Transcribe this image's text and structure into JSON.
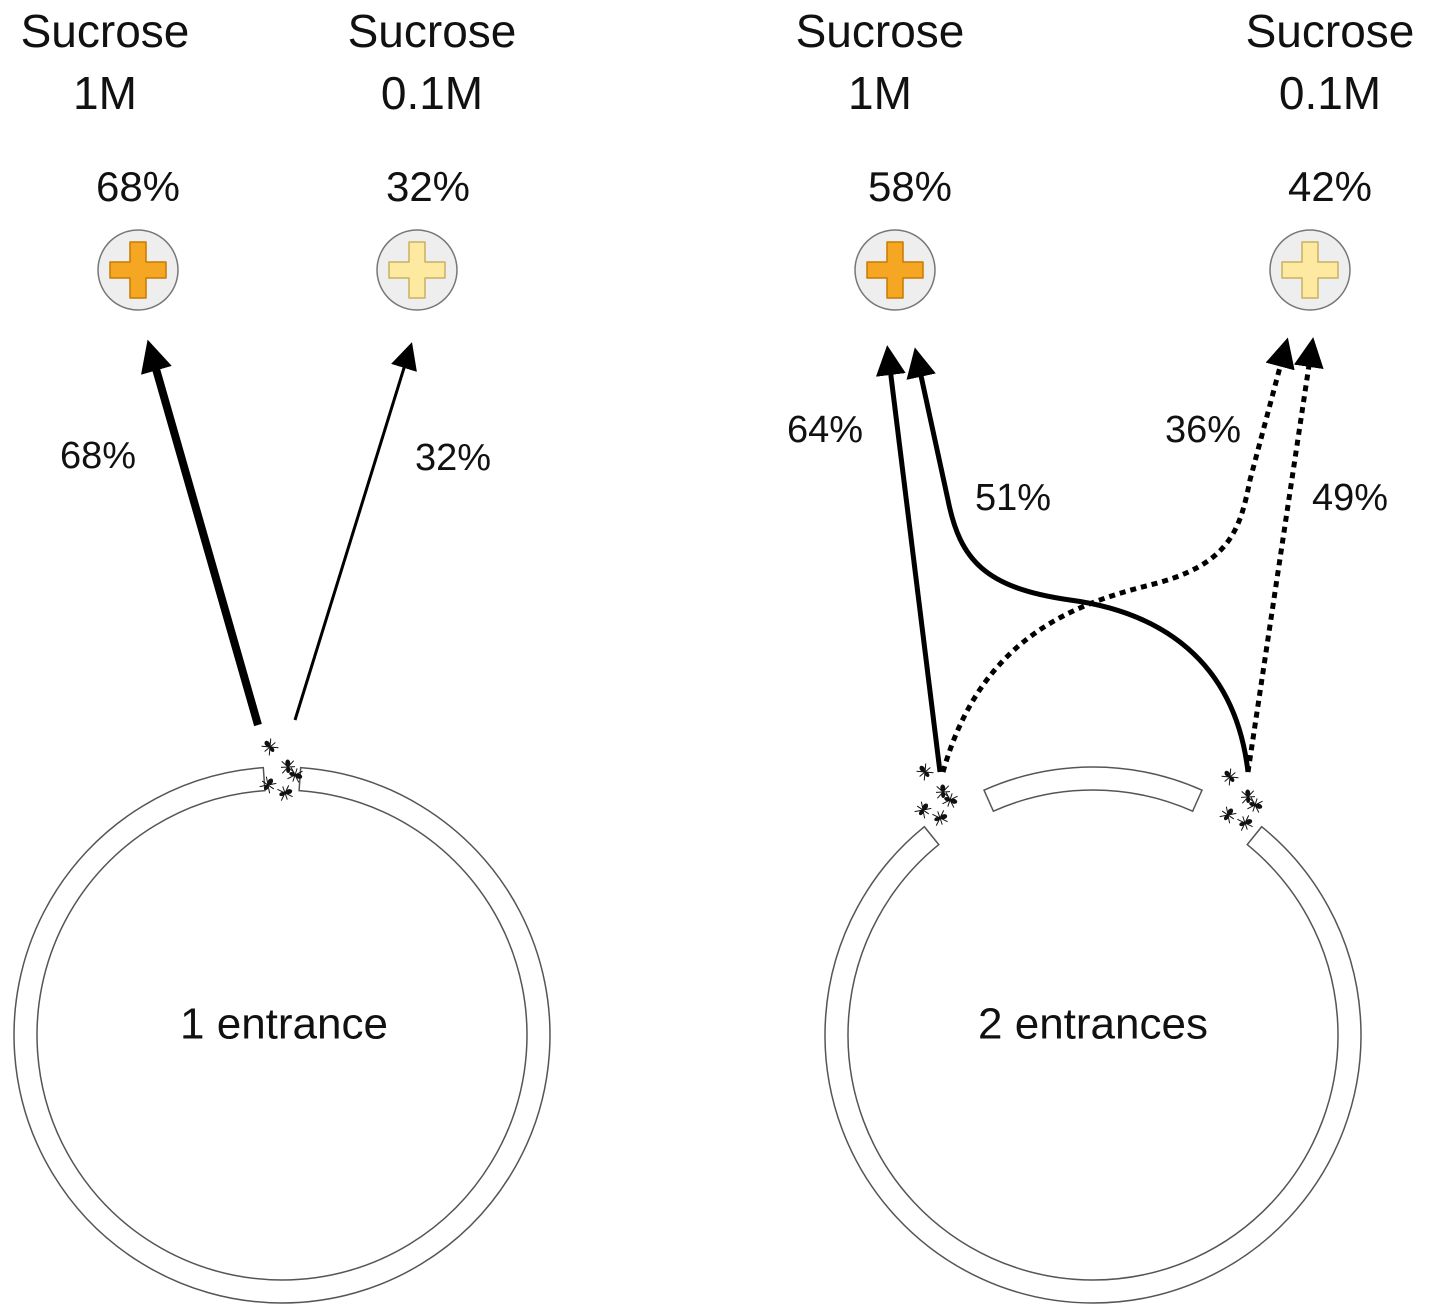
{
  "panels": [
    {
      "feeders": [
        {
          "name": "Sucrose",
          "concentration": "1M",
          "share": "68%"
        },
        {
          "name": "Sucrose",
          "concentration": "0.1M",
          "share": "32%"
        }
      ],
      "paths": [
        {
          "label": "68%"
        },
        {
          "label": "32%"
        }
      ],
      "nest": "1 entrance"
    },
    {
      "feeders": [
        {
          "name": "Sucrose",
          "concentration": "1M",
          "share": "58%"
        },
        {
          "name": "Sucrose",
          "concentration": "0.1M",
          "share": "42%"
        }
      ],
      "paths": [
        {
          "label": "64%"
        },
        {
          "label": "51%"
        },
        {
          "label": "36%"
        },
        {
          "label": "49%"
        }
      ],
      "nest": "2 entrances"
    }
  ]
}
